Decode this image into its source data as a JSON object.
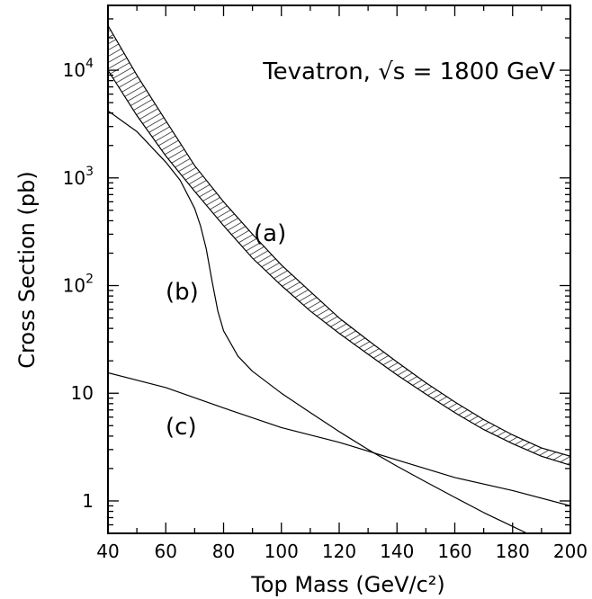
{
  "chart_data": {
    "type": "line",
    "title": "",
    "annotation": "Tevatron, √s = 1800 GeV",
    "xlabel": "Top Mass (GeV/c²)",
    "ylabel": "Cross Section (pb)",
    "xlim": [
      40,
      200
    ],
    "ylim": [
      0.5,
      40000
    ],
    "yscale": "log",
    "grid": false,
    "x_ticks": [
      40,
      60,
      80,
      100,
      120,
      140,
      160,
      180,
      200
    ],
    "x_tick_labels": [
      "40",
      "60",
      "80",
      "100",
      "120",
      "140",
      "160",
      "180",
      "200"
    ],
    "y_ticks": [
      {
        "value": 1,
        "base": "1",
        "exp": ""
      },
      {
        "value": 10,
        "base": "10",
        "exp": ""
      },
      {
        "value": 100,
        "base": "10",
        "exp": "2"
      },
      {
        "value": 1000,
        "base": "10",
        "exp": "3"
      },
      {
        "value": 10000,
        "base": "10",
        "exp": "4"
      }
    ],
    "series": [
      {
        "label": "(a)",
        "style": "hatched-band",
        "x": [
          40,
          50,
          60,
          70,
          80,
          90,
          100,
          110,
          120,
          130,
          140,
          150,
          160,
          170,
          180,
          190,
          200
        ],
        "upper": [
          26000,
          9000,
          3400,
          1300,
          600,
          300,
          155,
          88,
          50,
          31,
          19.5,
          12.5,
          8.3,
          5.7,
          4.1,
          3.1,
          2.6
        ],
        "lower": [
          10000,
          3800,
          1600,
          750,
          360,
          180,
          100,
          58,
          36,
          23,
          14.8,
          9.8,
          6.6,
          4.6,
          3.4,
          2.6,
          2.15
        ]
      },
      {
        "label": "(b)",
        "style": "line",
        "x": [
          40,
          50,
          60,
          65,
          70,
          72,
          74,
          76,
          78,
          80,
          85,
          90,
          100,
          110,
          120,
          130,
          140,
          150,
          160,
          170,
          180,
          185
        ],
        "y": [
          4200,
          2700,
          1400,
          950,
          520,
          360,
          220,
          110,
          58,
          38,
          22,
          16,
          10,
          6.6,
          4.4,
          3,
          2.1,
          1.5,
          1.08,
          0.78,
          0.58,
          0.5
        ]
      },
      {
        "label": "(c)",
        "style": "line",
        "x": [
          40,
          60,
          80,
          100,
          120,
          140,
          160,
          180,
          200
        ],
        "y": [
          15.5,
          11.3,
          7.3,
          4.8,
          3.5,
          2.4,
          1.65,
          1.25,
          0.9
        ]
      }
    ]
  }
}
